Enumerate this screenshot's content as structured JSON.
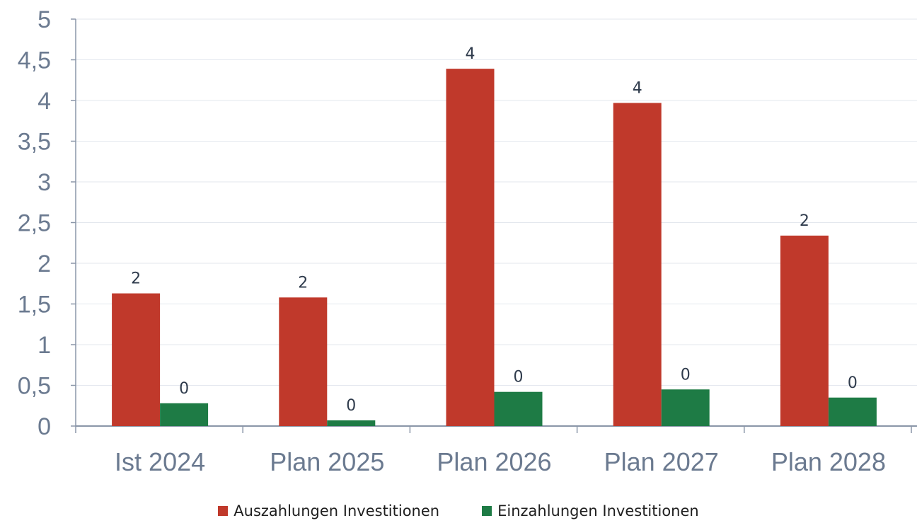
{
  "chart_data": {
    "type": "bar",
    "title": "",
    "xlabel": "",
    "ylabel": "",
    "categories": [
      "Ist 2024",
      "Plan 2025",
      "Plan 2026",
      "Plan 2027",
      "Plan 2028"
    ],
    "series": [
      {
        "name": "Auszahlungen Investitionen",
        "color": "#c0392b",
        "values": [
          1.63,
          1.58,
          4.39,
          3.97,
          2.34
        ],
        "labels": [
          "2",
          "2",
          "4",
          "4",
          "2"
        ]
      },
      {
        "name": "Einzahlungen Investitionen",
        "color": "#1e7b45",
        "values": [
          0.28,
          0.07,
          0.42,
          0.45,
          0.35
        ],
        "labels": [
          "0",
          "0",
          "0",
          "0",
          "0"
        ]
      }
    ],
    "ylim": [
      0,
      5
    ],
    "yticks": [
      "0",
      "0,5",
      "1",
      "1,5",
      "2",
      "2,5",
      "3",
      "3,5",
      "4",
      "4,5",
      "5"
    ],
    "grid": true,
    "legend_position": "bottom"
  }
}
